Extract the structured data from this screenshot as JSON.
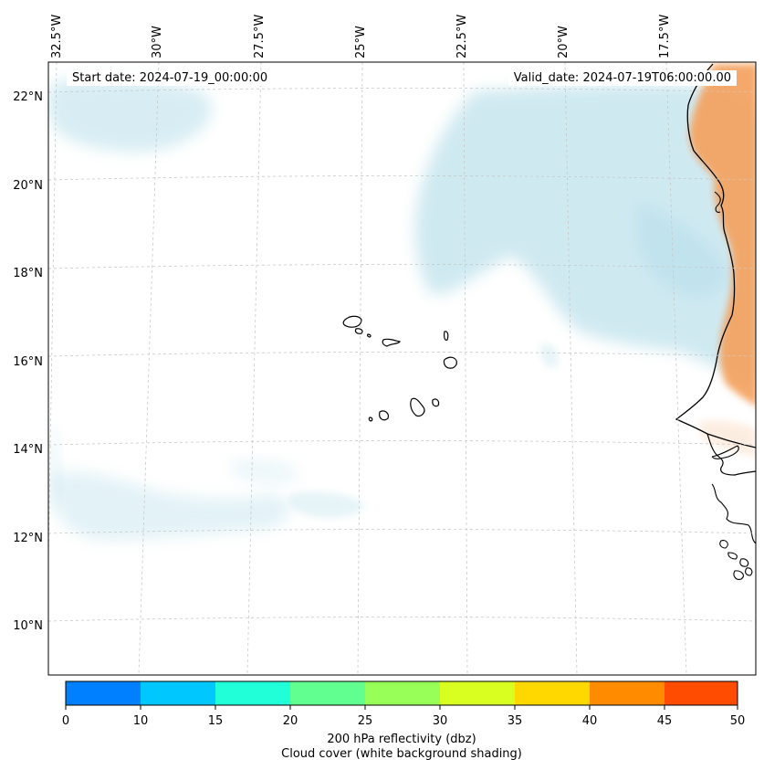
{
  "header": {
    "start_date": "Start date: 2024-07-19_00:00:00",
    "valid_date": "Valid_date: 2024-07-19T06:00:00.00"
  },
  "map": {
    "extent_lon": [
      -33.0,
      -16.0
    ],
    "extent_lat": [
      8.9,
      22.8
    ],
    "lon_labels": [
      "32.5°W",
      "30°W",
      "27.5°W",
      "25°W",
      "22.5°W",
      "20°W",
      "17.5°W"
    ],
    "lat_labels": [
      "22°N",
      "20°N",
      "18°N",
      "16°N",
      "14°N",
      "12°N",
      "10°N"
    ],
    "cloud_color": "#a8d8e6",
    "land_reflectivity_color": "#f4a25e",
    "coastline_color": "#000000",
    "gridline_color": "#c8c8c8"
  },
  "colorbar": {
    "ticks": [
      "0",
      "10",
      "15",
      "20",
      "25",
      "30",
      "35",
      "40",
      "45",
      "50"
    ],
    "colors": [
      "#0080ff",
      "#00c8ff",
      "#20ffd8",
      "#60ff90",
      "#98ff58",
      "#d8ff20",
      "#ffd800",
      "#ff8c00",
      "#ff4c00"
    ],
    "label_line1": "200 hPa reflectivity (dbz)",
    "label_line2": "Cloud cover (white background shading)"
  }
}
